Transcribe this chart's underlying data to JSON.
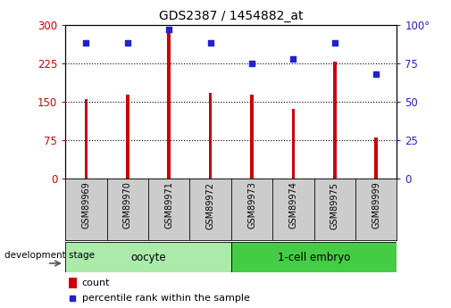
{
  "title": "GDS2387 / 1454882_at",
  "samples": [
    "GSM89969",
    "GSM89970",
    "GSM89971",
    "GSM89972",
    "GSM89973",
    "GSM89974",
    "GSM89975",
    "GSM89999"
  ],
  "counts": [
    155,
    163,
    295,
    168,
    163,
    135,
    228,
    80
  ],
  "percentiles": [
    88,
    88,
    97,
    88,
    75,
    78,
    88,
    68
  ],
  "groups": [
    {
      "label": "oocyte",
      "start": 0,
      "end": 4,
      "color": "#AAEAAA"
    },
    {
      "label": "1-cell embryo",
      "start": 4,
      "end": 8,
      "color": "#44CC44"
    }
  ],
  "ylim_left": [
    0,
    300
  ],
  "ylim_right": [
    0,
    100
  ],
  "yticks_left": [
    0,
    75,
    150,
    225,
    300
  ],
  "ytick_labels_left": [
    "0",
    "75",
    "150",
    "225",
    "300"
  ],
  "yticks_right": [
    0,
    25,
    50,
    75,
    100
  ],
  "ytick_labels_right": [
    "0",
    "25",
    "50",
    "75",
    "100°"
  ],
  "bar_color": "#CC0000",
  "dot_color": "#2222CC",
  "grid_color": "black",
  "label_color_left": "#CC0000",
  "label_color_right": "#2222CC",
  "stage_label": "development stage",
  "legend_count": "count",
  "legend_percentile": "percentile rank within the sample",
  "label_bg_color": "#CCCCCC",
  "bar_width": 0.08
}
